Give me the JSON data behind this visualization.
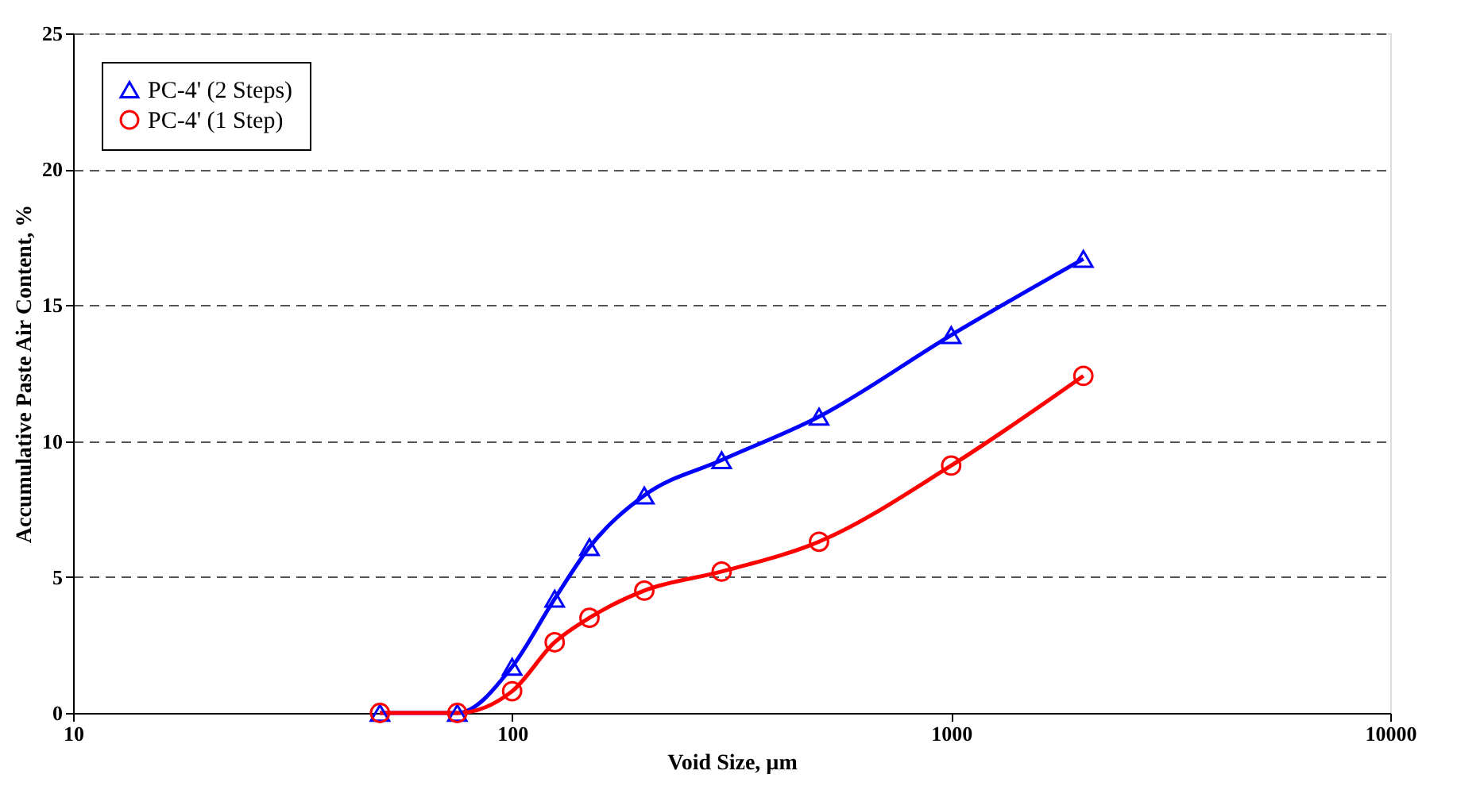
{
  "chart_data": {
    "type": "line",
    "xlabel": "Void Size, µm",
    "ylabel": "Accumulative Paste Air Content, %",
    "x": [
      50,
      75,
      100,
      125,
      150,
      200,
      300,
      500,
      1000,
      2000
    ],
    "series": [
      {
        "name": "PC-4' (2 Steps)",
        "color": "#0000ff",
        "marker": "triangle",
        "values": [
          0,
          0,
          1.7,
          4.2,
          6.1,
          8.0,
          9.3,
          10.9,
          13.9,
          16.7
        ]
      },
      {
        "name": "PC-4' (1 Step)",
        "color": "#ff0000",
        "marker": "circle",
        "values": [
          0,
          0,
          0.8,
          2.6,
          3.5,
          4.5,
          5.2,
          6.3,
          9.1,
          12.4
        ]
      }
    ],
    "log": "x",
    "xlim": [
      10,
      10000
    ],
    "xticks": [
      10,
      100,
      1000,
      10000
    ],
    "ylim": [
      0,
      25
    ],
    "yticks": [
      0,
      5,
      10,
      15,
      20,
      25
    ],
    "grid": "y",
    "legend": "top left",
    "line_style": "solid"
  }
}
